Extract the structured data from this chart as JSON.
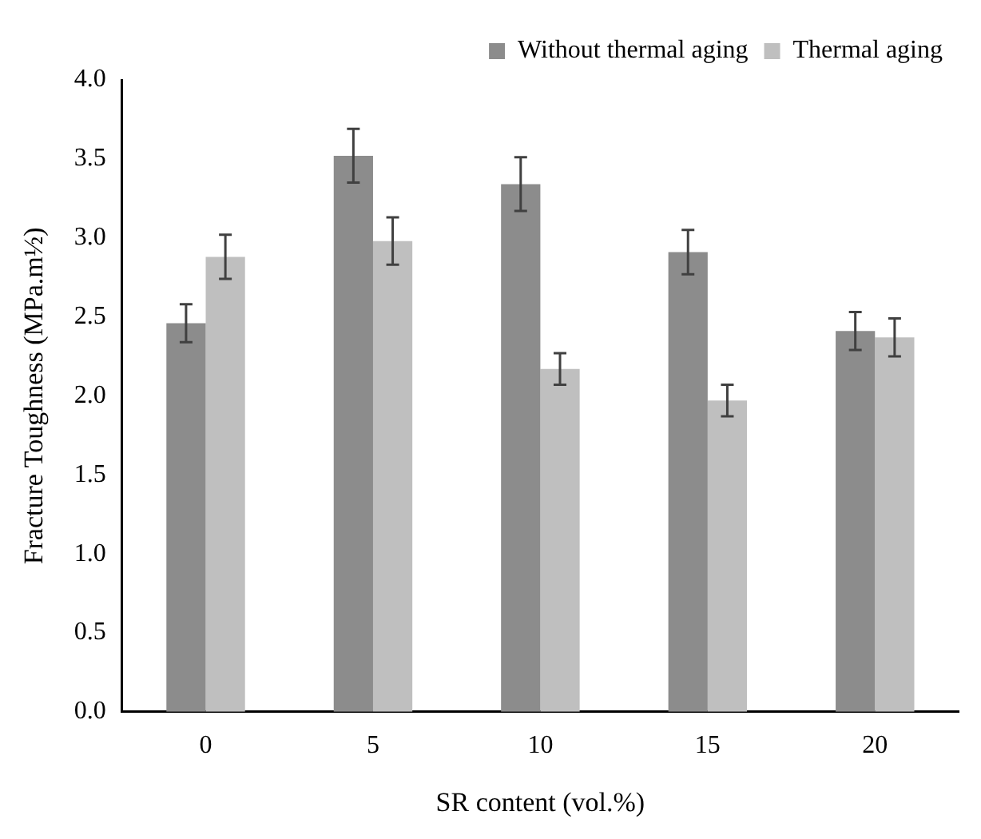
{
  "chart_data": {
    "type": "bar",
    "xlabel": "SR content (vol.%)",
    "ylabel": "Fracture Toughness (MPa.m½)",
    "categories": [
      "0",
      "5",
      "10",
      "15",
      "20"
    ],
    "series": [
      {
        "name": "Without thermal aging",
        "color": "#8c8c8c",
        "values": [
          2.46,
          3.52,
          3.34,
          2.91,
          2.41
        ],
        "errors": [
          0.12,
          0.17,
          0.17,
          0.14,
          0.12
        ]
      },
      {
        "name": "Thermal aging",
        "color": "#bfbfbf",
        "values": [
          2.88,
          2.98,
          2.17,
          1.97,
          2.37
        ],
        "errors": [
          0.14,
          0.15,
          0.1,
          0.1,
          0.12
        ]
      }
    ],
    "ylim": [
      0,
      4
    ],
    "yticks": [
      {
        "value": 0,
        "label": "0.0"
      },
      0.5,
      {
        "value": 1,
        "label": "1.0"
      },
      1.5,
      {
        "value": 2,
        "label": "2.0"
      },
      2.5,
      {
        "value": 3,
        "label": "3.0"
      },
      3.5,
      {
        "value": 4,
        "label": "4.0"
      }
    ],
    "grid": false,
    "legend": "top right"
  }
}
